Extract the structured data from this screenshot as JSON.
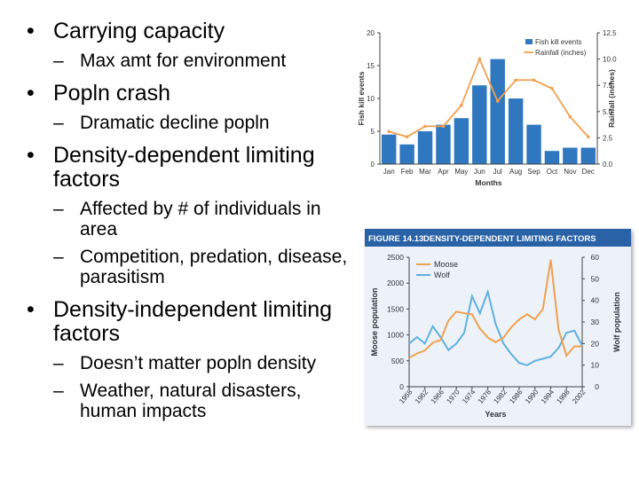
{
  "slide": {
    "bullets": [
      {
        "text": "Carrying capacity",
        "subs": [
          "Max amt for environment"
        ]
      },
      {
        "text": "Popln crash",
        "subs": [
          "Dramatic decline popln"
        ]
      },
      {
        "text": "Density-dependent limiting factors",
        "subs": [
          "Affected by # of individuals in area",
          "Competition, predation, disease, parasitism"
        ]
      },
      {
        "text": "Density-independent limiting factors",
        "subs": [
          "Doesn’t matter popln density",
          "Weather, natural disasters, human impacts"
        ]
      }
    ]
  },
  "chart_data": [
    {
      "type": "bar",
      "title": "",
      "categories": [
        "Jan",
        "Feb",
        "Mar",
        "Apr",
        "May",
        "Jun",
        "Jul",
        "Aug",
        "Sep",
        "Oct",
        "Nov",
        "Dec"
      ],
      "series": [
        {
          "name": "Fish kill events",
          "type": "bar",
          "axis": "left",
          "values": [
            4.5,
            3,
            5,
            6,
            7,
            12,
            16,
            10,
            6,
            2,
            2.5,
            2.5
          ],
          "color": "#2f78c0"
        },
        {
          "name": "Rainfall (inches)",
          "type": "line",
          "axis": "right",
          "values": [
            3.1,
            2.6,
            3.6,
            3.6,
            5.6,
            10,
            6,
            8,
            8,
            7.2,
            4.5,
            2.6
          ],
          "color": "#f0a050"
        }
      ],
      "xlabel": "Months",
      "ylabel": "Fish kill events",
      "y2label": "Rainfall (inches)",
      "ylim": [
        0,
        20
      ],
      "y2lim": [
        0,
        12.5
      ],
      "yticks": [
        0,
        5,
        10,
        15,
        20
      ],
      "y2ticks": [
        "0.0",
        "2.5",
        "5.0",
        "7.5",
        "10.0",
        "12.5"
      ],
      "legend": "top-right",
      "grid": false
    },
    {
      "type": "line",
      "figure_label": "FIGURE 14.13",
      "title": "DENSITY-DEPENDENT LIMITING FACTORS",
      "x": [
        1958,
        1960,
        1962,
        1964,
        1966,
        1968,
        1970,
        1972,
        1974,
        1976,
        1978,
        1980,
        1982,
        1984,
        1986,
        1988,
        1990,
        1992,
        1994,
        1996,
        1998,
        2000,
        2002
      ],
      "series": [
        {
          "name": "Moose",
          "axis": "left",
          "color": "#f0a050",
          "values": [
            560,
            640,
            700,
            850,
            900,
            1280,
            1450,
            1420,
            1400,
            1120,
            950,
            860,
            950,
            1150,
            1300,
            1400,
            1300,
            1500,
            2450,
            1100,
            600,
            780,
            780
          ]
        },
        {
          "name": "Wolf",
          "axis": "right",
          "color": "#60b0e0",
          "values": [
            20,
            23,
            20,
            28,
            23,
            17,
            20,
            25,
            42,
            34,
            44,
            29,
            20,
            15,
            11,
            10,
            12,
            13,
            14,
            18,
            25,
            26,
            19
          ]
        }
      ],
      "xlabel": "Years",
      "ylabel": "Moose population",
      "y2label": "Wolf population",
      "xticks": [
        "1958",
        "1962",
        "1966",
        "1970",
        "1974",
        "1978",
        "1982",
        "1986",
        "1990",
        "1994",
        "1998",
        "2002"
      ],
      "ylim": [
        0,
        2500
      ],
      "y2lim": [
        0,
        60
      ],
      "yticks": [
        0,
        500,
        1000,
        1500,
        2000,
        2500
      ],
      "y2ticks": [
        0,
        10,
        20,
        30,
        40,
        50,
        60
      ],
      "legend": "top-left",
      "grid": false
    }
  ]
}
